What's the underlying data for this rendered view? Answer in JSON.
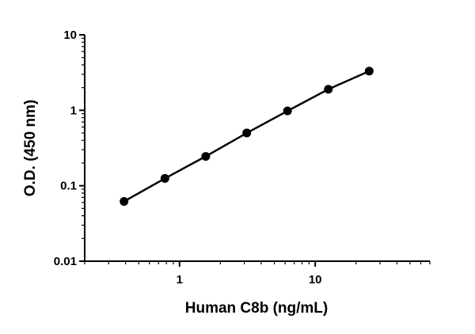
{
  "chart_data": {
    "type": "line",
    "title": "",
    "xlabel": "Human C8b (ng/mL)",
    "ylabel": "O.D. (450 nm)",
    "x_scale": "log",
    "y_scale": "log",
    "xlim": [
      0.2,
      70
    ],
    "ylim": [
      0.01,
      10
    ],
    "x_ticks": [
      1,
      10
    ],
    "x_tick_labels": [
      "1",
      "10"
    ],
    "y_ticks": [
      0.01,
      0.1,
      1,
      10
    ],
    "y_tick_labels": [
      "0.01",
      "0.1",
      "1",
      "10"
    ],
    "grid": false,
    "series": [
      {
        "x": [
          0.39,
          0.78,
          1.56,
          3.13,
          6.25,
          12.5,
          25
        ],
        "y": [
          0.062,
          0.125,
          0.245,
          0.5,
          0.98,
          1.9,
          3.3
        ]
      }
    ]
  }
}
